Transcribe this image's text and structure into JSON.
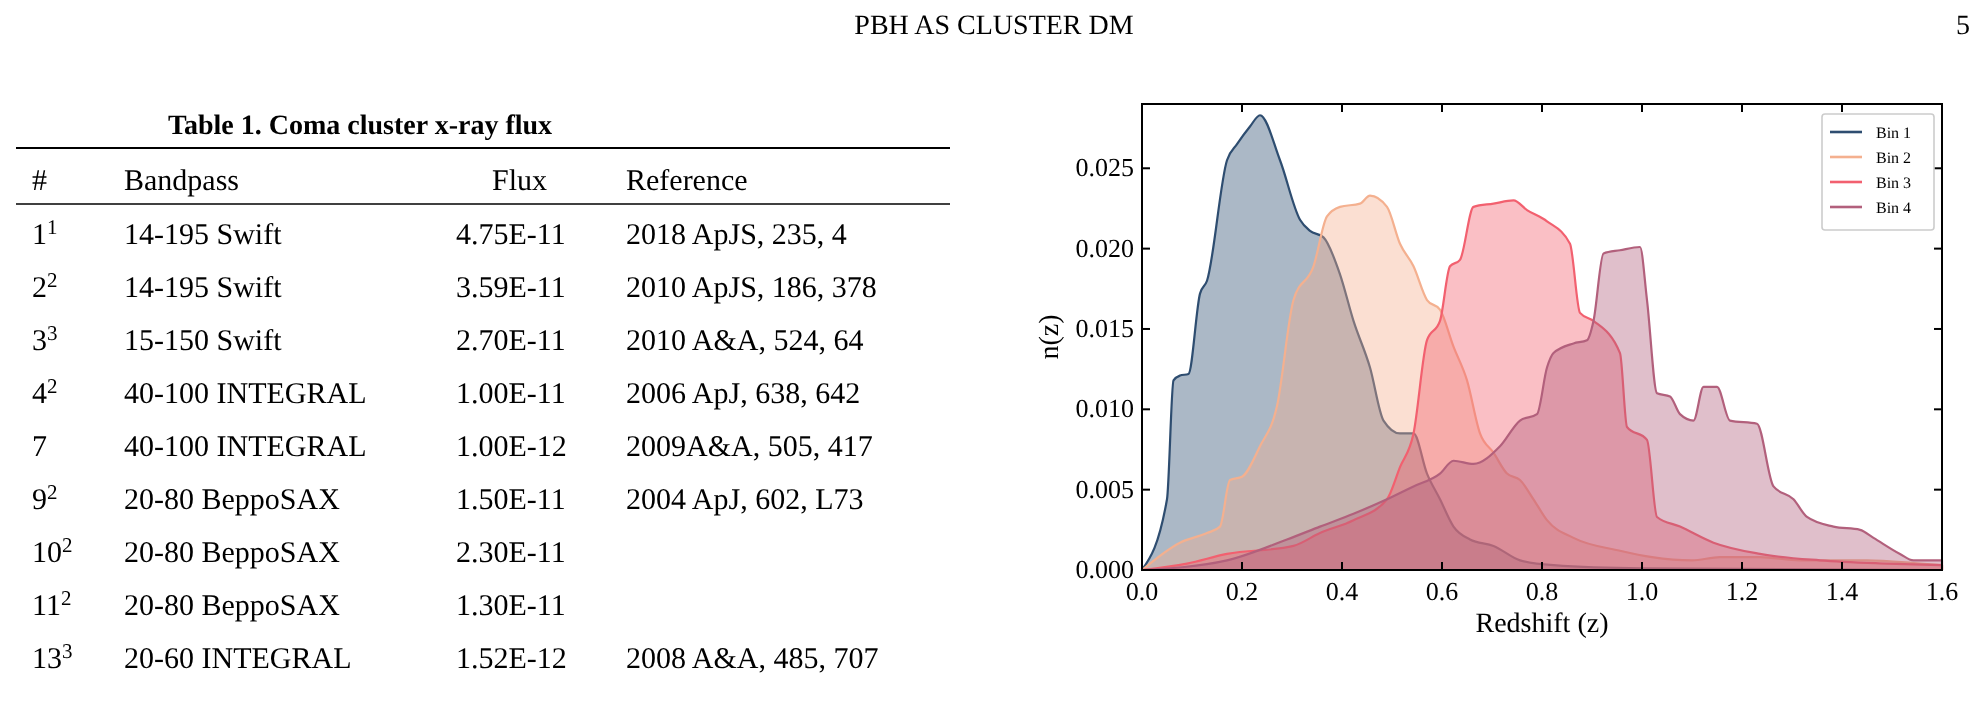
{
  "chart_data": [
    {
      "type": "other",
      "title": "Table 1. Coma cluster x-ray flux",
      "annotations": [
        "PBH AS CLUSTER DM",
        "5",
        "#",
        "Bandpass",
        "Flux",
        "Reference",
        "1$^{1}$",
        "14-195 Swift",
        "4.75E-11",
        "2018 ApJS, 235, 4",
        "2$^{2}$",
        "14-195 Swift",
        "3.59E-11",
        "2010 ApJS, 186, 378",
        "3$^{3}$",
        "15-150 Swift",
        "2.70E-11",
        "2010 A&A, 524, 64",
        "4$^{2}$",
        "40-100 INTEGRAL",
        "1.00E-11",
        "2006 ApJ, 638, 642",
        "7",
        "40-100 INTEGRAL",
        "1.00E-12",
        "2009A&A, 505, 417",
        "9$^{2}$",
        "20-80 BeppoSAX",
        "1.50E-11",
        "2004 ApJ, 602, L73",
        "10$^{2}$",
        "20-80 BeppoSAX",
        "2.30E-11",
        null,
        "11$^{2}$",
        "20-80 BeppoSAX",
        "1.30E-11",
        null,
        "13$^{3}$",
        "20-60 INTEGRAL",
        "1.52E-12",
        "2008 A&A, 485, 707"
      ]
    },
    {
      "type": "area",
      "xlabel": "Redshift (z)",
      "ylabel": "n(z)",
      "xlim": [
        0,
        1.6
      ],
      "ylim": [
        0,
        0.029
      ],
      "xticks": [
        {
          "value": 0,
          "label": "0.0"
        },
        {
          "value": 0.2,
          "label": "0.2"
        },
        {
          "value": 0.4,
          "label": "0.4"
        },
        {
          "value": 0.6,
          "label": "0.6"
        },
        {
          "value": 0.8,
          "label": "0.8"
        },
        {
          "value": 1,
          "label": "1.0"
        },
        {
          "value": 1.2,
          "label": "1.2"
        },
        {
          "value": 1.4,
          "label": "1.4"
        },
        {
          "value": 1.6,
          "label": "1.6"
        }
      ],
      "yticks": [
        {
          "value": 0,
          "label": "0.000"
        },
        {
          "value": 0.005,
          "label": "0.005"
        },
        {
          "value": 0.01,
          "label": "0.010"
        },
        {
          "value": 0.015,
          "label": "0.015"
        },
        {
          "value": 0.02,
          "label": "0.020"
        },
        {
          "value": 0.025,
          "label": "0.025"
        }
      ],
      "grid": false,
      "legend": "top right",
      "series": [
        {
          "name": "Bin 1",
          "color": "#2e4d70",
          "x": [
            0,
            0.05,
            0.063,
            0.076,
            0.093,
            0.116,
            0.13,
            0.17,
            0.19,
            0.216,
            0.236,
            0.276,
            0.316,
            0.336,
            0.363,
            0.396,
            0.423,
            0.456,
            0.483,
            0.516,
            0.543,
            0.57,
            0.596,
            0.623,
            0.656,
            0.703,
            0.756,
            0.823,
            1.0,
            1.6
          ],
          "values": [
            0,
            0.0044,
            0.0118,
            0.0121,
            0.0122,
            0.0172,
            0.018,
            0.0255,
            0.0265,
            0.0276,
            0.0283,
            0.0255,
            0.0218,
            0.0211,
            0.0207,
            0.0184,
            0.0155,
            0.0126,
            0.0093,
            0.0085,
            0.0085,
            0.006,
            0.0044,
            0.0027,
            0.0019,
            0.0015,
            0.0006,
            0.0003,
            0.0001,
            0
          ]
        },
        {
          "name": "Bin 2",
          "color": "#f4b08f",
          "x": [
            0,
            0.076,
            0.13,
            0.156,
            0.176,
            0.2,
            0.236,
            0.27,
            0.303,
            0.343,
            0.37,
            0.396,
            0.436,
            0.456,
            0.49,
            0.516,
            0.543,
            0.57,
            0.596,
            0.623,
            0.65,
            0.676,
            0.703,
            0.73,
            0.756,
            0.783,
            0.81,
            0.863,
            0.956,
            1.02,
            1.1,
            1.156,
            1.236,
            1.316,
            1.45,
            1.556,
            1.6
          ],
          "values": [
            0,
            0.0017,
            0.0023,
            0.0027,
            0.0056,
            0.0058,
            0.0077,
            0.0102,
            0.0168,
            0.0189,
            0.022,
            0.0226,
            0.0228,
            0.0233,
            0.0226,
            0.0203,
            0.0189,
            0.0168,
            0.0162,
            0.0139,
            0.0118,
            0.0085,
            0.0073,
            0.006,
            0.0056,
            0.0044,
            0.0031,
            0.002,
            0.0012,
            0.0008,
            0.0006,
            0.0008,
            0.0008,
            0.0006,
            0.0006,
            0.0004,
            0.0003
          ]
        },
        {
          "name": "Bin 3",
          "color": "#f2606f",
          "x": [
            0,
            0.09,
            0.17,
            0.303,
            0.356,
            0.423,
            0.49,
            0.516,
            0.543,
            0.57,
            0.596,
            0.616,
            0.636,
            0.663,
            0.703,
            0.743,
            0.77,
            0.81,
            0.856,
            0.876,
            0.903,
            0.956,
            0.97,
            1.01,
            1.03,
            1.076,
            1.143,
            1.236,
            1.356,
            1.49,
            1.6
          ],
          "values": [
            0,
            0.0004,
            0.001,
            0.0015,
            0.0023,
            0.0031,
            0.0044,
            0.0064,
            0.0085,
            0.0143,
            0.0155,
            0.0189,
            0.0193,
            0.0226,
            0.0228,
            0.023,
            0.0224,
            0.0217,
            0.0203,
            0.016,
            0.0155,
            0.0135,
            0.0089,
            0.0081,
            0.0033,
            0.0027,
            0.0017,
            0.001,
            0.0006,
            0.0004,
            0.0003
          ]
        },
        {
          "name": "Bin 4",
          "color": "#b2607c",
          "x": [
            0,
            0.17,
            0.29,
            0.356,
            0.423,
            0.49,
            0.543,
            0.596,
            0.623,
            0.663,
            0.716,
            0.756,
            0.79,
            0.81,
            0.823,
            0.863,
            0.89,
            0.903,
            0.923,
            0.956,
            0.996,
            1.01,
            1.03,
            1.056,
            1.076,
            1.103,
            1.123,
            1.15,
            1.176,
            1.23,
            1.263,
            1.303,
            1.33,
            1.383,
            1.436,
            1.463,
            1.516,
            1.543,
            1.6
          ],
          "values": [
            0,
            0.0006,
            0.0019,
            0.0027,
            0.0035,
            0.0044,
            0.0052,
            0.006,
            0.0068,
            0.0066,
            0.0077,
            0.0093,
            0.0097,
            0.0126,
            0.0135,
            0.0141,
            0.0143,
            0.0155,
            0.0197,
            0.0199,
            0.0201,
            0.0168,
            0.011,
            0.0108,
            0.0097,
            0.0093,
            0.0114,
            0.0114,
            0.0093,
            0.0091,
            0.0052,
            0.0044,
            0.0033,
            0.0027,
            0.0025,
            0.002,
            0.001,
            0.0006,
            0.0006
          ]
        }
      ]
    }
  ]
}
